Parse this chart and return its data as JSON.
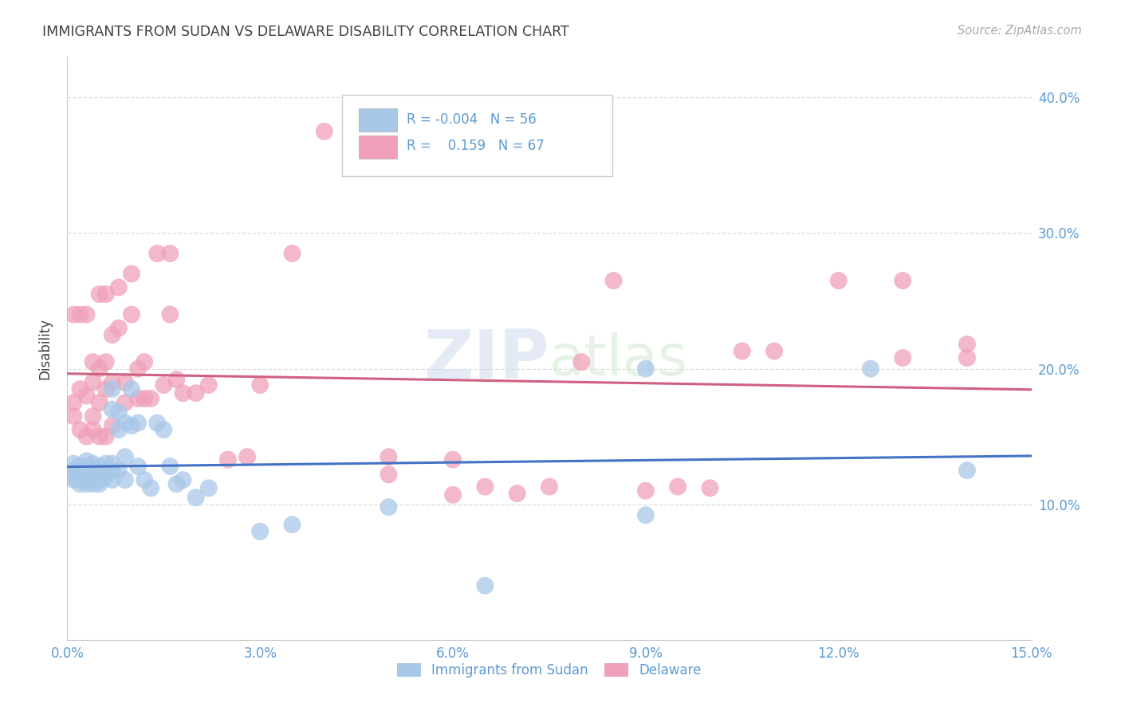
{
  "title": "IMMIGRANTS FROM SUDAN VS DELAWARE DISABILITY CORRELATION CHART",
  "source": "Source: ZipAtlas.com",
  "ylabel": "Disability",
  "xlabel_blue": "Immigrants from Sudan",
  "xlabel_pink": "Delaware",
  "watermark_zip": "ZIP",
  "watermark_atlas": "atlas",
  "xlim": [
    0.0,
    0.15
  ],
  "ylim": [
    0.0,
    0.43
  ],
  "xticks": [
    0.0,
    0.03,
    0.06,
    0.09,
    0.12,
    0.15
  ],
  "yticks": [
    0.1,
    0.2,
    0.3,
    0.4
  ],
  "ytick_labels": [
    "10.0%",
    "20.0%",
    "30.0%",
    "40.0%"
  ],
  "xtick_labels": [
    "0.0%",
    "3.0%",
    "6.0%",
    "9.0%",
    "12.0%",
    "15.0%"
  ],
  "legend_blue_R": "-0.004",
  "legend_blue_N": "56",
  "legend_pink_R": "0.159",
  "legend_pink_N": "67",
  "blue_color": "#A8C8E8",
  "pink_color": "#F0A0B8",
  "line_blue": "#4472C4",
  "line_pink": "#D06080",
  "title_color": "#404040",
  "tick_color": "#5B9BD5",
  "grid_color": "#DDDDDD",
  "blue_scatter_x": [
    0.001,
    0.001,
    0.001,
    0.001,
    0.002,
    0.002,
    0.002,
    0.002,
    0.003,
    0.003,
    0.003,
    0.003,
    0.004,
    0.004,
    0.004,
    0.004,
    0.004,
    0.005,
    0.005,
    0.005,
    0.005,
    0.006,
    0.006,
    0.006,
    0.007,
    0.007,
    0.007,
    0.007,
    0.007,
    0.008,
    0.008,
    0.008,
    0.009,
    0.009,
    0.009,
    0.01,
    0.01,
    0.011,
    0.011,
    0.012,
    0.013,
    0.014,
    0.015,
    0.016,
    0.017,
    0.018,
    0.02,
    0.022,
    0.03,
    0.035,
    0.05,
    0.065,
    0.09,
    0.09,
    0.125,
    0.14
  ],
  "blue_scatter_y": [
    0.13,
    0.125,
    0.12,
    0.118,
    0.128,
    0.122,
    0.118,
    0.115,
    0.132,
    0.128,
    0.12,
    0.115,
    0.13,
    0.126,
    0.122,
    0.118,
    0.115,
    0.128,
    0.122,
    0.118,
    0.115,
    0.13,
    0.125,
    0.12,
    0.185,
    0.17,
    0.13,
    0.125,
    0.118,
    0.168,
    0.155,
    0.125,
    0.16,
    0.135,
    0.118,
    0.185,
    0.158,
    0.16,
    0.128,
    0.118,
    0.112,
    0.16,
    0.155,
    0.128,
    0.115,
    0.118,
    0.105,
    0.112,
    0.08,
    0.085,
    0.098,
    0.04,
    0.092,
    0.2,
    0.2,
    0.125
  ],
  "pink_scatter_x": [
    0.001,
    0.001,
    0.001,
    0.002,
    0.002,
    0.002,
    0.003,
    0.003,
    0.003,
    0.004,
    0.004,
    0.004,
    0.004,
    0.005,
    0.005,
    0.005,
    0.005,
    0.006,
    0.006,
    0.006,
    0.006,
    0.007,
    0.007,
    0.007,
    0.008,
    0.008,
    0.009,
    0.009,
    0.01,
    0.01,
    0.011,
    0.011,
    0.012,
    0.012,
    0.013,
    0.014,
    0.015,
    0.016,
    0.016,
    0.017,
    0.018,
    0.02,
    0.022,
    0.025,
    0.028,
    0.03,
    0.035,
    0.04,
    0.05,
    0.06,
    0.07,
    0.08,
    0.09,
    0.1,
    0.11,
    0.12,
    0.13,
    0.13,
    0.14,
    0.14,
    0.05,
    0.06,
    0.065,
    0.075,
    0.085,
    0.095,
    0.105
  ],
  "pink_scatter_y": [
    0.165,
    0.175,
    0.24,
    0.155,
    0.185,
    0.24,
    0.15,
    0.18,
    0.24,
    0.155,
    0.165,
    0.19,
    0.205,
    0.15,
    0.175,
    0.2,
    0.255,
    0.15,
    0.185,
    0.205,
    0.255,
    0.158,
    0.19,
    0.225,
    0.23,
    0.26,
    0.175,
    0.19,
    0.24,
    0.27,
    0.178,
    0.2,
    0.178,
    0.205,
    0.178,
    0.285,
    0.188,
    0.24,
    0.285,
    0.192,
    0.182,
    0.182,
    0.188,
    0.133,
    0.135,
    0.188,
    0.285,
    0.375,
    0.122,
    0.107,
    0.108,
    0.205,
    0.11,
    0.112,
    0.213,
    0.265,
    0.208,
    0.265,
    0.208,
    0.218,
    0.135,
    0.133,
    0.113,
    0.113,
    0.265,
    0.113,
    0.213
  ]
}
